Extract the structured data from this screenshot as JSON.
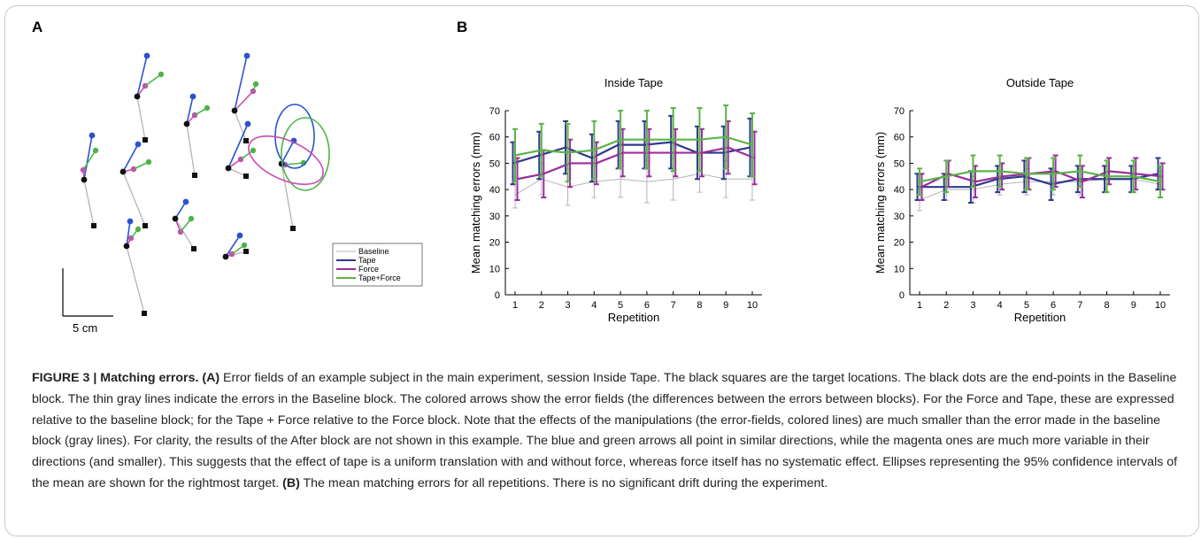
{
  "figure": {
    "panel_a_letter": "A",
    "panel_b_letter": "B",
    "scale_bar_label": "5 cm",
    "legend": [
      {
        "label": "Baseline",
        "color": "#b4b4b4"
      },
      {
        "label": "Tape",
        "color": "#2e3a8c"
      },
      {
        "label": "Force",
        "color": "#9b2d9b"
      },
      {
        "label": "Tape+Force",
        "color": "#5ab446"
      }
    ],
    "colors": {
      "tape_arrow": "#2a52d0",
      "force_arrow": "#c84cb4",
      "tapeforce_arrow": "#4cb446",
      "baseline_line": "#b4b4b4",
      "target": "#111111",
      "endpoint": "#111111"
    }
  },
  "chart_data": [
    {
      "type": "line",
      "title": "Inside Tape",
      "xlabel": "Repetition",
      "ylabel": "Mean matching errors (mm)",
      "x": [
        1,
        2,
        3,
        4,
        5,
        6,
        7,
        8,
        9,
        10
      ],
      "xticks": [
        "1",
        "2",
        "3",
        "4",
        "5",
        "6",
        "7",
        "8",
        "9",
        "10"
      ],
      "yticks": [
        "0",
        "10",
        "20",
        "30",
        "40",
        "50",
        "60",
        "70"
      ],
      "ylim": [
        0,
        70
      ],
      "grid": false,
      "series": [
        {
          "name": "Baseline",
          "color": "#b4b4b4",
          "values": [
            38,
            44,
            41,
            43,
            44,
            43,
            44,
            46,
            44,
            44
          ],
          "err": [
            5,
            6,
            7,
            6,
            7,
            8,
            8,
            7,
            7,
            8
          ]
        },
        {
          "name": "Tape",
          "color": "#2e3a8c",
          "values": [
            50,
            53,
            56,
            52,
            57,
            57,
            58,
            54,
            54,
            56
          ],
          "err": [
            8,
            9,
            10,
            9,
            9,
            9,
            10,
            10,
            10,
            11
          ]
        },
        {
          "name": "Force",
          "color": "#9b2d9b",
          "values": [
            44,
            46,
            50,
            50,
            54,
            54,
            54,
            54,
            56,
            52
          ],
          "err": [
            8,
            9,
            9,
            8,
            9,
            9,
            9,
            9,
            10,
            10
          ]
        },
        {
          "name": "Tape+Force",
          "color": "#5ab446",
          "values": [
            53,
            55,
            54,
            55,
            59,
            59,
            59,
            59,
            60,
            57
          ],
          "err": [
            10,
            10,
            11,
            11,
            11,
            11,
            12,
            12,
            12,
            12
          ]
        }
      ]
    },
    {
      "type": "line",
      "title": "Outside Tape",
      "xlabel": "Repetition",
      "ylabel": "Mean matching errors (mm)",
      "x": [
        1,
        2,
        3,
        4,
        5,
        6,
        7,
        8,
        9,
        10
      ],
      "xticks": [
        "1",
        "2",
        "3",
        "4",
        "5",
        "6",
        "7",
        "8",
        "9",
        "10"
      ],
      "yticks": [
        "0",
        "10",
        "20",
        "30",
        "40",
        "50",
        "60",
        "70"
      ],
      "ylim": [
        0,
        70
      ],
      "grid": false,
      "series": [
        {
          "name": "Baseline",
          "color": "#b4b4b4",
          "values": [
            36,
            40,
            40,
            42,
            43,
            43,
            43,
            44,
            44,
            42
          ],
          "err": [
            4,
            4,
            5,
            4,
            5,
            5,
            5,
            5,
            5,
            5
          ]
        },
        {
          "name": "Tape",
          "color": "#2e3a8c",
          "values": [
            41,
            41,
            41,
            44,
            45,
            42,
            44,
            44,
            44,
            46
          ],
          "err": [
            5,
            5,
            6,
            5,
            6,
            6,
            5,
            5,
            5,
            6
          ]
        },
        {
          "name": "Force",
          "color": "#9b2d9b",
          "values": [
            41,
            46,
            43,
            45,
            46,
            47,
            43,
            47,
            46,
            45
          ],
          "err": [
            5,
            5,
            6,
            5,
            6,
            6,
            6,
            5,
            6,
            5
          ]
        },
        {
          "name": "Tape+Force",
          "color": "#5ab446",
          "values": [
            43,
            45,
            47,
            47,
            46,
            46,
            47,
            45,
            45,
            43
          ],
          "err": [
            5,
            6,
            6,
            6,
            6,
            6,
            6,
            6,
            6,
            6
          ]
        }
      ]
    }
  ],
  "caption": {
    "label": "FIGURE 3 | Matching errors.",
    "a_ref": "(A)",
    "text_a": " Error fields of an example subject in the main experiment, session Inside Tape. The black squares are the target locations. The black dots are the end-points in the Baseline block. The thin gray lines indicate the errors in the Baseline block. The colored arrows show the error fields (the differences between the errors between blocks). For the Force and Tape, these are expressed relative to the baseline block; for the Tape + Force relative to the Force block. Note that the effects of the manipulations (the error-fields, colored lines) are much smaller than the error made in the baseline block (gray lines). For clarity, the results of the After block are not shown in this example. The blue and green arrows all point in similar directions, while the magenta ones are much more variable in their directions (and smaller). This suggests that the effect of tape is a uniform translation with and without force, whereas force itself has no systematic effect. Ellipses representing the 95% confidence intervals of the mean are shown for the rightmost target. ",
    "b_ref": "(B)",
    "text_b": " The mean matching errors for all repetitions. There is no significant drift during the experiment."
  }
}
